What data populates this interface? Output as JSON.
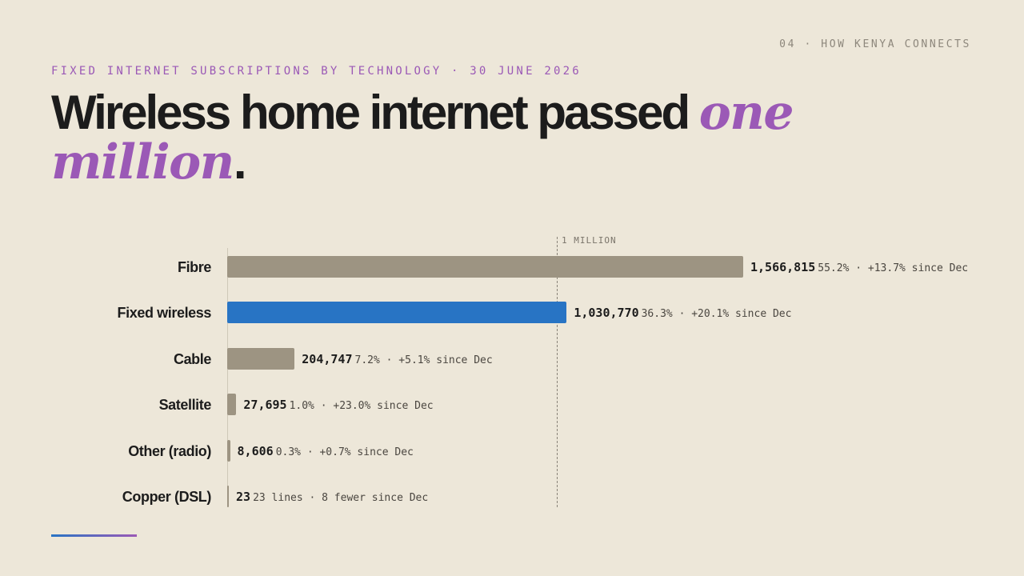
{
  "slide": {
    "tag": "04 · HOW KENYA CONNECTS"
  },
  "eyebrow": "FIXED INTERNET SUBSCRIPTIONS BY TECHNOLOGY · 30 JUNE 2026",
  "headline": {
    "main": "Wireless home internet passed ",
    "accent": "one million",
    "end": "."
  },
  "colors": {
    "bar_default": "#9d9482",
    "bar_highlight": "#2874c4",
    "accent": "#9b59b6",
    "background": "#ede7d9"
  },
  "chart_data": {
    "type": "bar",
    "orientation": "horizontal",
    "categories": [
      "Fibre",
      "Fixed wireless",
      "Cable",
      "Satellite",
      "Other (radio)",
      "Copper (DSL)"
    ],
    "values": [
      1566815,
      1030770,
      204747,
      27695,
      8606,
      23
    ],
    "value_labels": [
      "1,566,815",
      "1,030,770",
      "204,747",
      "27,695",
      "8,606",
      "23"
    ],
    "details": [
      "55.2% · +13.7% since Dec",
      "36.3% · +20.1% since Dec",
      "7.2% · +5.1% since Dec",
      "1.0% · +23.0% since Dec",
      "0.3% · +0.7% since Dec",
      "23 lines · 8 fewer since Dec"
    ],
    "highlight": "Fixed wireless",
    "reference_line": {
      "value": 1000000,
      "label": "1 MILLION"
    },
    "xlim": [
      0,
      1566815
    ],
    "grid": false,
    "legend": "none"
  }
}
